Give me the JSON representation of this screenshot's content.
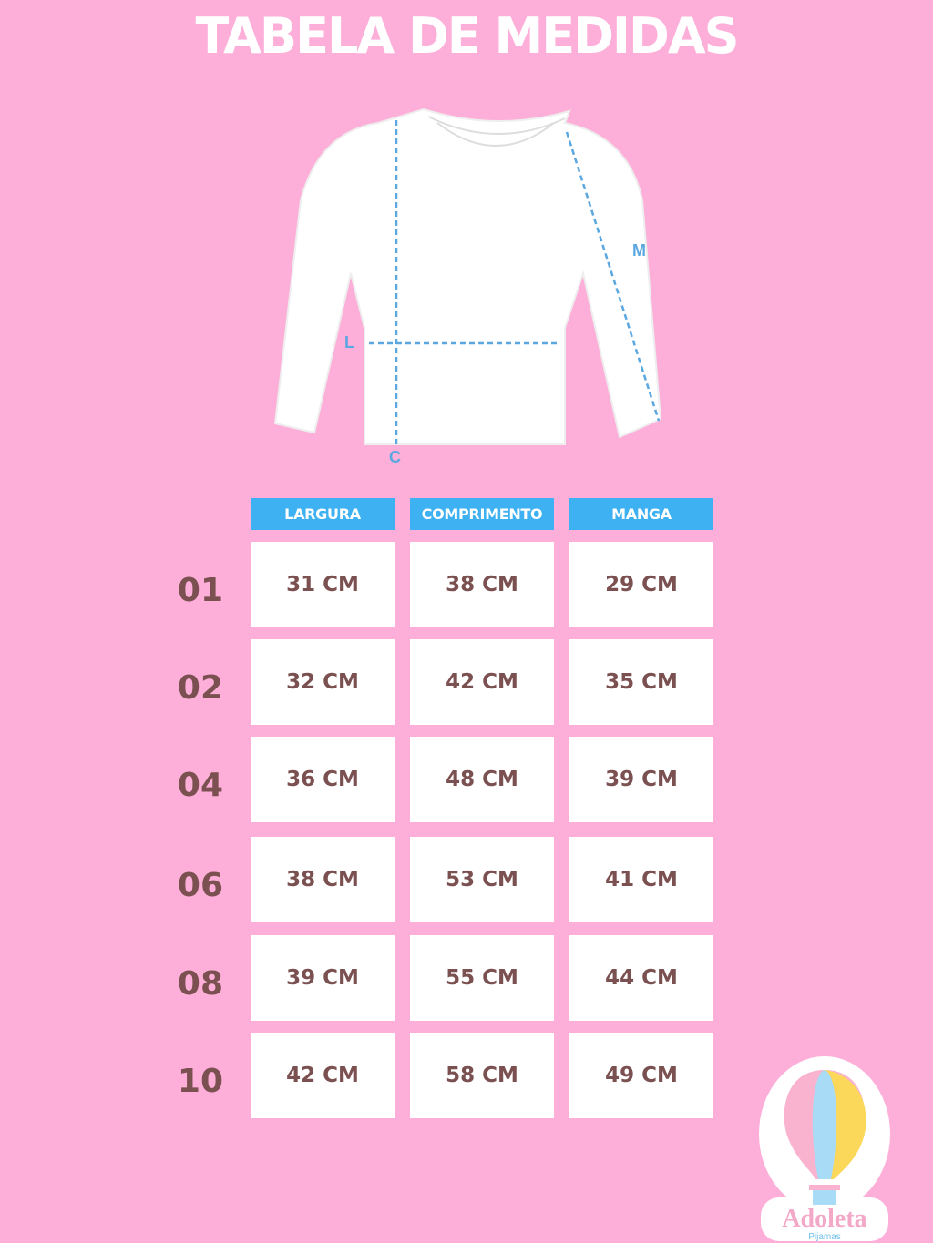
{
  "title": "TABELA DE MEDIDAS",
  "diagram": {
    "labels": {
      "width": "L",
      "length": "C",
      "sleeve": "M"
    },
    "line_color": "#5ba7e0"
  },
  "table": {
    "headers": [
      "LARGURA",
      "COMPRIMENTO",
      "MANGA"
    ],
    "header_color": "#3db1f2",
    "rows": [
      {
        "size": "01",
        "values": [
          "31 CM",
          "38 CM",
          "29 CM"
        ]
      },
      {
        "size": "02",
        "values": [
          "32 CM",
          "42 CM",
          "35 CM"
        ]
      },
      {
        "size": "04",
        "values": [
          "36 CM",
          "48 CM",
          "39 CM"
        ]
      },
      {
        "size": "06",
        "values": [
          "38 CM",
          "53 CM",
          "41 CM"
        ]
      },
      {
        "size": "08",
        "values": [
          "39 CM",
          "55 CM",
          "44 CM"
        ]
      },
      {
        "size": "10",
        "values": [
          "42 CM",
          "58 CM",
          "49 CM"
        ]
      }
    ]
  },
  "logo": {
    "name": "Adoleta",
    "tagline": "Pijamas"
  },
  "colors": {
    "background": "#fdafd9",
    "text": "#7b5050"
  }
}
